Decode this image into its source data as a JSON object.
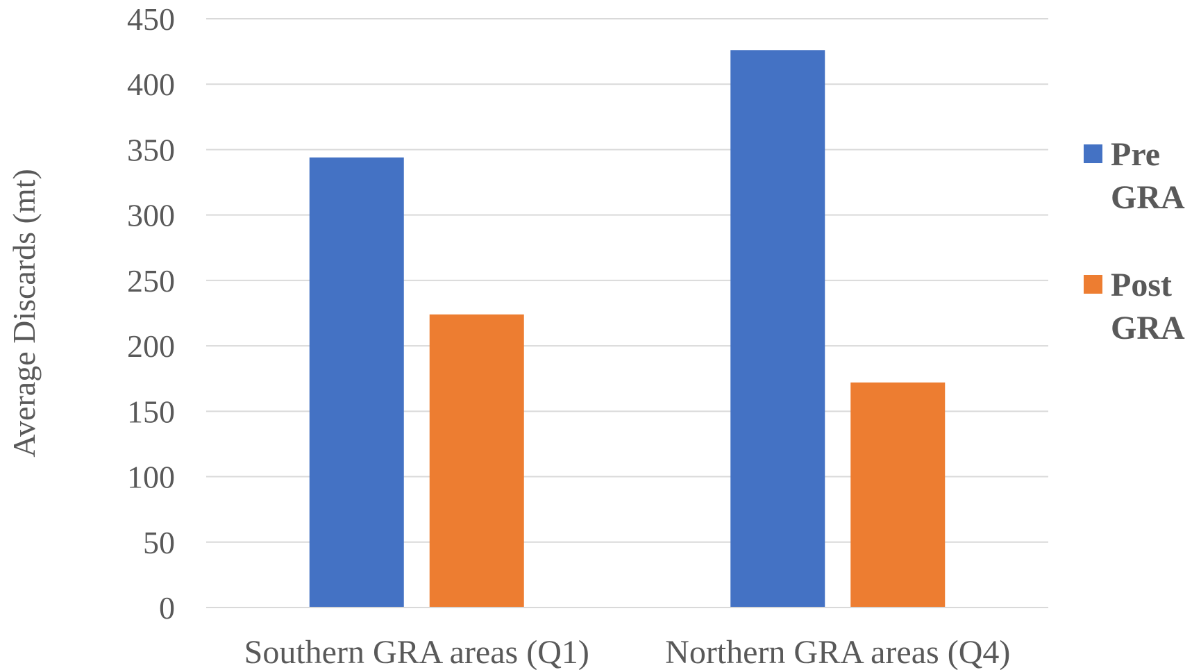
{
  "chart_data": {
    "type": "bar",
    "title": "",
    "xlabel": "",
    "ylabel": "Average Discards (mt)",
    "ylim": [
      0,
      450
    ],
    "yticks": [
      0,
      50,
      100,
      150,
      200,
      250,
      300,
      350,
      400,
      450
    ],
    "grid": true,
    "legend_position": "right",
    "categories": [
      "Southern GRA areas (Q1)",
      "Northern GRA areas (Q4)"
    ],
    "series": [
      {
        "name": "Pre GRA",
        "name_lines": [
          "Pre",
          "GRA"
        ],
        "color": "#4472C4",
        "values": [
          344,
          426
        ]
      },
      {
        "name": "Post GRA",
        "name_lines": [
          "Post",
          "GRA"
        ],
        "color": "#ED7D31",
        "values": [
          224,
          172
        ]
      }
    ]
  }
}
